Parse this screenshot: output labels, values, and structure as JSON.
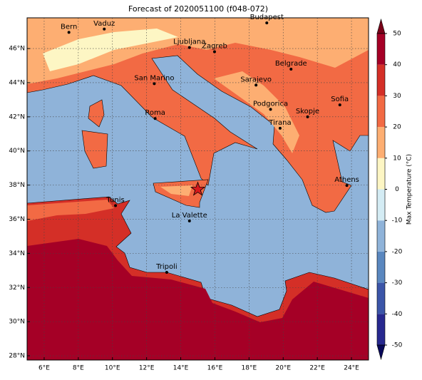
{
  "chart_data": {
    "type": "map",
    "title": "Forecast of 2020051100 (f048-072)",
    "xlim": [
      5,
      25
    ],
    "ylim": [
      27.75,
      47.8
    ],
    "xticks": [
      {
        "value": 6,
        "label": "6°E"
      },
      {
        "value": 8,
        "label": "8°E"
      },
      {
        "value": 10,
        "label": "10°E"
      },
      {
        "value": 12,
        "label": "12°E"
      },
      {
        "value": 14,
        "label": "14°E"
      },
      {
        "value": 16,
        "label": "16°E"
      },
      {
        "value": 18,
        "label": "18°E"
      },
      {
        "value": 20,
        "label": "20°E"
      },
      {
        "value": 22,
        "label": "22°E"
      },
      {
        "value": 24,
        "label": "24°E"
      }
    ],
    "yticks": [
      {
        "value": 28,
        "label": "28°N"
      },
      {
        "value": 30,
        "label": "30°N"
      },
      {
        "value": 32,
        "label": "32°N"
      },
      {
        "value": 34,
        "label": "34°N"
      },
      {
        "value": 36,
        "label": "36°N"
      },
      {
        "value": 38,
        "label": "38°N"
      },
      {
        "value": 40,
        "label": "40°N"
      },
      {
        "value": 42,
        "label": "42°N"
      },
      {
        "value": 44,
        "label": "44°N"
      },
      {
        "value": 46,
        "label": "46°N"
      }
    ],
    "grid": true,
    "cities": [
      {
        "name": "Bern",
        "lon": 7.45,
        "lat": 46.95
      },
      {
        "name": "Vaduz",
        "lon": 9.52,
        "lat": 47.14
      },
      {
        "name": "Budapest",
        "lon": 19.04,
        "lat": 47.5
      },
      {
        "name": "Ljubljana",
        "lon": 14.51,
        "lat": 46.06
      },
      {
        "name": "Zagreb",
        "lon": 15.98,
        "lat": 45.81
      },
      {
        "name": "Belgrade",
        "lon": 20.46,
        "lat": 44.79
      },
      {
        "name": "San Marino",
        "lon": 12.45,
        "lat": 43.94
      },
      {
        "name": "Sarajevo",
        "lon": 18.41,
        "lat": 43.86
      },
      {
        "name": "Sofia",
        "lon": 23.32,
        "lat": 42.7
      },
      {
        "name": "Podgorica",
        "lon": 19.26,
        "lat": 42.44
      },
      {
        "name": "Skopje",
        "lon": 21.43,
        "lat": 42.0
      },
      {
        "name": "Roma",
        "lon": 12.5,
        "lat": 41.9
      },
      {
        "name": "Tirana",
        "lon": 19.82,
        "lat": 41.33
      },
      {
        "name": "Athens",
        "lon": 23.73,
        "lat": 37.98
      },
      {
        "name": "Tunis",
        "lon": 10.18,
        "lat": 36.8
      },
      {
        "name": "La Valette",
        "lon": 14.51,
        "lat": 35.9
      },
      {
        "name": "Tripoli",
        "lon": 13.18,
        "lat": 32.89
      }
    ],
    "marker": {
      "lon": 15.0,
      "lat": 37.75,
      "color": "#d7191c"
    },
    "colorbar": {
      "label": "Max Temperature (°C)",
      "lim": [
        -50,
        50
      ],
      "ticks": [
        -50,
        -40,
        -30,
        -20,
        -10,
        0,
        10,
        20,
        30,
        40,
        50
      ],
      "colors": [
        "#27288f",
        "#3b55a8",
        "#5a87bf",
        "#8fb3d9",
        "#d4ecf4",
        "#fdf6c4",
        "#fdae72",
        "#f26a44",
        "#d42f27",
        "#a50026"
      ],
      "under": "#08085a",
      "over": "#7a0018"
    }
  }
}
